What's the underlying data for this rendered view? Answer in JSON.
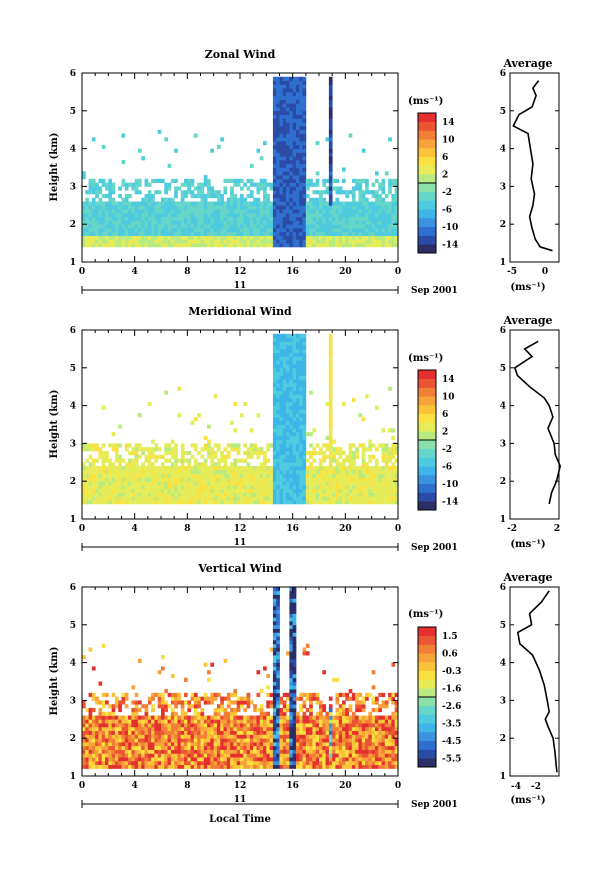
{
  "colors": {
    "scale": [
      "#2b2f66",
      "#2b4ca6",
      "#2f6fd0",
      "#3b93e0",
      "#3fb4e6",
      "#4fcbe0",
      "#66d6c8",
      "#8ae0a8",
      "#b9ea7f",
      "#e6ec58",
      "#fbe140",
      "#fbc33a",
      "#f8a33a",
      "#f27f36",
      "#ea5534",
      "#e53030"
    ],
    "axis": "#000000"
  },
  "panels": [
    {
      "title": "Zonal Wind",
      "ylabel": "Height (km)",
      "yticks": [
        "1",
        "2",
        "3",
        "4",
        "5",
        "6"
      ],
      "xticks": [
        "0",
        "4",
        "8",
        "12",
        "16",
        "20",
        "0"
      ],
      "date_day": "11",
      "date_label": "Sep 2001",
      "unit_label": "(ms⁻¹)",
      "colorbar_ticks": [
        "14",
        "10",
        "6",
        "2",
        "-2",
        "-6",
        "-10",
        "-14"
      ],
      "avg_title": "Average",
      "avg_xticks": [
        "-5",
        "0"
      ],
      "avg_xlabel": "(ms⁻¹)",
      "xlabel": ""
    },
    {
      "title": "Meridional Wind",
      "ylabel": "Height (km)",
      "yticks": [
        "1",
        "2",
        "3",
        "4",
        "5",
        "6"
      ],
      "xticks": [
        "0",
        "4",
        "8",
        "12",
        "16",
        "20",
        "0"
      ],
      "date_day": "11",
      "date_label": "Sep 2001",
      "unit_label": "(ms⁻¹)",
      "colorbar_ticks": [
        "14",
        "10",
        "6",
        "2",
        "-2",
        "-6",
        "-10",
        "-14"
      ],
      "avg_title": "Average",
      "avg_xticks": [
        "-2",
        "2"
      ],
      "avg_xlabel": "(ms⁻¹)",
      "xlabel": ""
    },
    {
      "title": "Vertical Wind",
      "ylabel": "Height (km)",
      "yticks": [
        "1",
        "2",
        "3",
        "4",
        "5",
        "6"
      ],
      "xticks": [
        "0",
        "4",
        "8",
        "12",
        "16",
        "20",
        "0"
      ],
      "date_day": "11",
      "date_label": "Sep 2001",
      "unit_label": "(ms⁻¹)",
      "colorbar_ticks": [
        "1.5",
        "0.6",
        "-0.3",
        "-1.6",
        "-2.6",
        "-3.5",
        "-4.5",
        "-5.5"
      ],
      "avg_title": "Average",
      "avg_xticks": [
        "-4",
        "-2"
      ],
      "avg_xlabel": "(ms⁻¹)",
      "xlabel": "Local Time"
    }
  ],
  "chart_data": [
    {
      "type": "heatmap",
      "title": "Zonal Wind",
      "ylabel": "Height (km)",
      "xlabel": "",
      "x_unit": "hour LT",
      "xlim": [
        0,
        24
      ],
      "ylim": [
        1,
        6
      ],
      "colorbar": {
        "label": "(ms⁻¹)",
        "range": [
          -16,
          16
        ]
      },
      "features": [
        {
          "name": "background",
          "x": [
            0,
            24
          ],
          "y": [
            1.35,
            3.2
          ],
          "value": -4
        },
        {
          "name": "lowest layer",
          "x": [
            0,
            24
          ],
          "y": [
            1.35,
            1.7
          ],
          "value": 2
        },
        {
          "name": "convective band",
          "x": [
            14.5,
            16.8
          ],
          "y": [
            1.4,
            5.8
          ],
          "value": -12
        },
        {
          "name": "narrow column",
          "x": [
            18.6,
            18.9
          ],
          "y": [
            2.5,
            5.8
          ],
          "value": -13
        }
      ],
      "profile": {
        "title": "Average",
        "xlim": [
          -5,
          1
        ],
        "x": [
          -1.5,
          -2.2,
          -1.8,
          -2.3,
          -3.9,
          -4.6,
          -2.8,
          -2.5,
          -2.2,
          -2.4,
          -2.0,
          -2.2,
          -2.6,
          -2.3,
          -1.9,
          -1.3,
          0.2
        ],
        "y": [
          5.8,
          5.6,
          5.4,
          5.1,
          4.9,
          4.6,
          4.4,
          4.0,
          3.6,
          3.2,
          2.8,
          2.5,
          2.2,
          1.9,
          1.6,
          1.4,
          1.3
        ]
      }
    },
    {
      "type": "heatmap",
      "title": "Meridional Wind",
      "ylabel": "Height (km)",
      "xlabel": "",
      "x_unit": "hour LT",
      "xlim": [
        0,
        24
      ],
      "ylim": [
        1,
        6
      ],
      "colorbar": {
        "label": "(ms⁻¹)",
        "range": [
          -16,
          16
        ]
      },
      "features": [
        {
          "name": "background",
          "x": [
            0,
            24
          ],
          "y": [
            1.4,
            3.0
          ],
          "value": 3
        },
        {
          "name": "convective band",
          "x": [
            14.5,
            16.8
          ],
          "y": [
            1.4,
            5.8
          ],
          "value": -6
        },
        {
          "name": "narrow column",
          "x": [
            18.6,
            18.9
          ],
          "y": [
            1.5,
            5.8
          ],
          "value": 4
        }
      ],
      "profile": {
        "title": "Average",
        "xlim": [
          -2,
          2
        ],
        "x": [
          0.3,
          -0.8,
          -0.2,
          -1.6,
          -1.4,
          -0.4,
          0.8,
          1.2,
          1.5,
          1.1,
          1.6,
          1.7,
          2.1,
          1.8,
          1.4,
          1.2
        ],
        "y": [
          5.7,
          5.5,
          5.3,
          5.0,
          4.8,
          4.5,
          4.2,
          4.0,
          3.7,
          3.4,
          3.0,
          2.7,
          2.4,
          2.0,
          1.7,
          1.4
        ]
      }
    },
    {
      "type": "heatmap",
      "title": "Vertical Wind",
      "ylabel": "Height (km)",
      "xlabel": "Local Time",
      "x_unit": "hour LT",
      "xlim": [
        0,
        24
      ],
      "ylim": [
        1,
        6
      ],
      "colorbar": {
        "label": "(ms⁻¹)",
        "range": [
          -6,
          2
        ]
      },
      "features": [
        {
          "name": "background",
          "x": [
            0,
            24
          ],
          "y": [
            1.2,
            3.2
          ],
          "value": 0.6
        },
        {
          "name": "downdraft column 1",
          "x": [
            14.3,
            14.8
          ],
          "y": [
            1.2,
            6.0
          ],
          "value": -5
        },
        {
          "name": "downdraft column 2",
          "x": [
            15.6,
            16.2
          ],
          "y": [
            1.2,
            6.0
          ],
          "value": -5.5
        },
        {
          "name": "narrow column",
          "x": [
            18.6,
            18.9
          ],
          "y": [
            1.5,
            2.8
          ],
          "value": -3
        }
      ],
      "profile": {
        "title": "Average",
        "xlim": [
          -5,
          0
        ],
        "x": [
          -1.0,
          -1.8,
          -3.0,
          -2.8,
          -4.2,
          -4.0,
          -2.7,
          -2.0,
          -1.5,
          -1.2,
          -1.0,
          -1.4,
          -1.1,
          -0.6,
          -0.4,
          -0.3,
          -0.2
        ],
        "y": [
          5.9,
          5.6,
          5.3,
          5.0,
          4.8,
          4.5,
          4.2,
          3.8,
          3.4,
          3.0,
          2.7,
          2.5,
          2.3,
          2.0,
          1.6,
          1.3,
          1.1
        ]
      }
    }
  ]
}
